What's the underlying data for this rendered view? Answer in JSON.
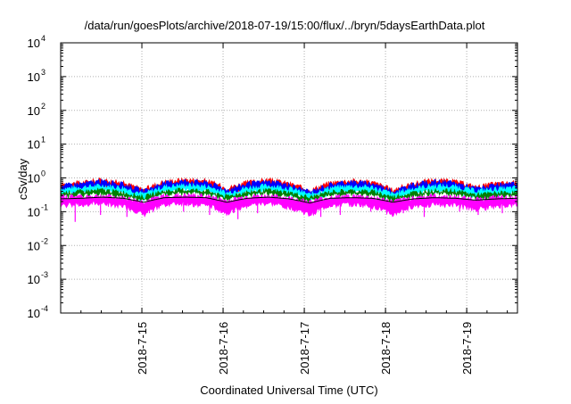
{
  "chart_data": {
    "type": "area",
    "title": "/data/run/goesPlots/archive/2018-07-19/15:00/flux/../bryn/5daysEarthData.plot",
    "xlabel": "Coordinated Universal Time (UTC)",
    "ylabel": "cSv/day",
    "yscale": "log",
    "ylim": [
      0.0001,
      10000
    ],
    "y_ticks": [
      {
        "value": 0.0001,
        "base": "10",
        "exp": "-4"
      },
      {
        "value": 0.001,
        "base": "10",
        "exp": "-3"
      },
      {
        "value": 0.01,
        "base": "10",
        "exp": "-2"
      },
      {
        "value": 0.1,
        "base": "10",
        "exp": "-1"
      },
      {
        "value": 1,
        "base": "10",
        "exp": "0"
      },
      {
        "value": 10,
        "base": "10",
        "exp": "1"
      },
      {
        "value": 100,
        "base": "10",
        "exp": "2"
      },
      {
        "value": 1000,
        "base": "10",
        "exp": "3"
      },
      {
        "value": 10000,
        "base": "10",
        "exp": "4"
      }
    ],
    "xlim": [
      "2018-07-14T00:00",
      "2018-07-19T15:00"
    ],
    "x_ticks": [
      {
        "value": "2018-07-15T00:00",
        "label": "2018-7-15"
      },
      {
        "value": "2018-07-16T00:00",
        "label": "2018-7-16"
      },
      {
        "value": "2018-07-17T00:00",
        "label": "2018-7-17"
      },
      {
        "value": "2018-07-18T00:00",
        "label": "2018-7-18"
      },
      {
        "value": "2018-07-19T00:00",
        "label": "2018-7-19"
      }
    ],
    "grid": true,
    "series": [
      {
        "color": "#ff0000",
        "values": [
          [
            0.42,
            0.65
          ],
          [
            0.5,
            0.75
          ],
          [
            0.62,
            0.9
          ],
          [
            0.48,
            0.72
          ],
          [
            0.3,
            0.45
          ],
          [
            0.52,
            0.8
          ],
          [
            0.64,
            0.92
          ],
          [
            0.55,
            0.85
          ],
          [
            0.32,
            0.5
          ],
          [
            0.5,
            0.75
          ],
          [
            0.6,
            0.9
          ],
          [
            0.44,
            0.7
          ],
          [
            0.3,
            0.42
          ],
          [
            0.5,
            0.74
          ],
          [
            0.58,
            0.86
          ],
          [
            0.5,
            0.76
          ],
          [
            0.3,
            0.44
          ],
          [
            0.48,
            0.7
          ],
          [
            0.6,
            0.9
          ],
          [
            0.52,
            0.8
          ],
          [
            0.36,
            0.55
          ],
          [
            0.46,
            0.7
          ],
          [
            0.5,
            0.74
          ]
        ]
      },
      {
        "color": "#0000ff",
        "values": [
          [
            0.4,
            0.6
          ],
          [
            0.46,
            0.7
          ],
          [
            0.56,
            0.82
          ],
          [
            0.44,
            0.66
          ],
          [
            0.28,
            0.4
          ],
          [
            0.48,
            0.72
          ],
          [
            0.58,
            0.84
          ],
          [
            0.5,
            0.76
          ],
          [
            0.3,
            0.45
          ],
          [
            0.46,
            0.68
          ],
          [
            0.54,
            0.8
          ],
          [
            0.4,
            0.62
          ],
          [
            0.28,
            0.38
          ],
          [
            0.46,
            0.66
          ],
          [
            0.52,
            0.78
          ],
          [
            0.46,
            0.7
          ],
          [
            0.28,
            0.4
          ],
          [
            0.44,
            0.64
          ],
          [
            0.54,
            0.8
          ],
          [
            0.48,
            0.72
          ],
          [
            0.34,
            0.5
          ],
          [
            0.42,
            0.62
          ],
          [
            0.46,
            0.68
          ]
        ]
      },
      {
        "color": "#00ffff",
        "values": [
          [
            0.34,
            0.48
          ],
          [
            0.38,
            0.54
          ],
          [
            0.44,
            0.6
          ],
          [
            0.36,
            0.52
          ],
          [
            0.24,
            0.33
          ],
          [
            0.4,
            0.56
          ],
          [
            0.46,
            0.62
          ],
          [
            0.42,
            0.58
          ],
          [
            0.26,
            0.36
          ],
          [
            0.38,
            0.52
          ],
          [
            0.44,
            0.6
          ],
          [
            0.34,
            0.5
          ],
          [
            0.24,
            0.32
          ],
          [
            0.38,
            0.52
          ],
          [
            0.42,
            0.58
          ],
          [
            0.38,
            0.54
          ],
          [
            0.24,
            0.33
          ],
          [
            0.36,
            0.5
          ],
          [
            0.44,
            0.6
          ],
          [
            0.4,
            0.56
          ],
          [
            0.3,
            0.42
          ],
          [
            0.34,
            0.48
          ],
          [
            0.38,
            0.52
          ]
        ]
      },
      {
        "color": "#008000",
        "values": [
          [
            0.3,
            0.36
          ],
          [
            0.33,
            0.4
          ],
          [
            0.36,
            0.44
          ],
          [
            0.31,
            0.38
          ],
          [
            0.22,
            0.27
          ],
          [
            0.34,
            0.41
          ],
          [
            0.37,
            0.45
          ],
          [
            0.35,
            0.42
          ],
          [
            0.23,
            0.28
          ],
          [
            0.33,
            0.39
          ],
          [
            0.36,
            0.43
          ],
          [
            0.3,
            0.37
          ],
          [
            0.22,
            0.26
          ],
          [
            0.33,
            0.39
          ],
          [
            0.35,
            0.42
          ],
          [
            0.33,
            0.4
          ],
          [
            0.22,
            0.27
          ],
          [
            0.31,
            0.37
          ],
          [
            0.36,
            0.43
          ],
          [
            0.34,
            0.41
          ],
          [
            0.27,
            0.32
          ],
          [
            0.3,
            0.36
          ],
          [
            0.32,
            0.38
          ]
        ]
      },
      {
        "color": "#ff00ff",
        "values": [
          [
            0.16,
            0.28
          ],
          [
            0.17,
            0.3
          ],
          [
            0.18,
            0.3
          ],
          [
            0.15,
            0.26
          ],
          [
            0.08,
            0.2
          ],
          [
            0.17,
            0.3
          ],
          [
            0.18,
            0.31
          ],
          [
            0.16,
            0.3
          ],
          [
            0.09,
            0.21
          ],
          [
            0.16,
            0.29
          ],
          [
            0.18,
            0.3
          ],
          [
            0.14,
            0.26
          ],
          [
            0.08,
            0.2
          ],
          [
            0.16,
            0.28
          ],
          [
            0.17,
            0.3
          ],
          [
            0.15,
            0.27
          ],
          [
            0.08,
            0.2
          ],
          [
            0.15,
            0.27
          ],
          [
            0.17,
            0.3
          ],
          [
            0.16,
            0.28
          ],
          [
            0.12,
            0.24
          ],
          [
            0.15,
            0.27
          ],
          [
            0.16,
            0.28
          ]
        ]
      },
      {
        "color": "#000000",
        "values": [
          [
            0.24,
            0.24
          ],
          [
            0.25,
            0.25
          ],
          [
            0.27,
            0.27
          ],
          [
            0.25,
            0.25
          ],
          [
            0.19,
            0.19
          ],
          [
            0.26,
            0.26
          ],
          [
            0.27,
            0.27
          ],
          [
            0.26,
            0.26
          ],
          [
            0.19,
            0.19
          ],
          [
            0.25,
            0.25
          ],
          [
            0.27,
            0.27
          ],
          [
            0.24,
            0.24
          ],
          [
            0.18,
            0.18
          ],
          [
            0.25,
            0.25
          ],
          [
            0.26,
            0.26
          ],
          [
            0.25,
            0.25
          ],
          [
            0.19,
            0.19
          ],
          [
            0.24,
            0.24
          ],
          [
            0.26,
            0.26
          ],
          [
            0.25,
            0.25
          ],
          [
            0.22,
            0.22
          ],
          [
            0.24,
            0.24
          ],
          [
            0.25,
            0.25
          ]
        ]
      }
    ],
    "magenta_dips": [
      0.05,
      0.08,
      0.07,
      0.09,
      0.1,
      0.08,
      0.06,
      0.09,
      0.11,
      0.07,
      0.08,
      0.1,
      0.09,
      0.07,
      0.1,
      0.08,
      0.09
    ]
  }
}
